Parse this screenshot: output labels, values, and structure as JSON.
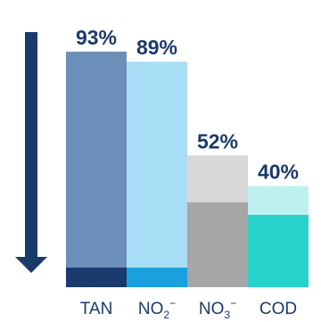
{
  "chart_data": {
    "type": "bar",
    "categories": [
      "TAN",
      "NO2-",
      "NO3-",
      "COD"
    ],
    "category_labels": [
      {
        "base": "TAN",
        "sub": "",
        "sup": ""
      },
      {
        "base": "NO",
        "sub": "2",
        "sup": "−"
      },
      {
        "base": "NO",
        "sub": "3",
        "sup": "−"
      },
      {
        "base": "COD",
        "sub": "",
        "sup": ""
      }
    ],
    "series": [
      {
        "values": [
          93,
          89,
          52,
          40
        ]
      }
    ],
    "data_labels": [
      "93%",
      "89%",
      "52%",
      "40%"
    ],
    "remaining_fraction": [
      0.07,
      0.11,
      0.48,
      0.6
    ],
    "direction_arrow": "down",
    "colors": {
      "removed": [
        "#6b8fb8",
        "#a8def5",
        "#d8d8d8",
        "#bff0f0"
      ],
      "remaining": [
        "#1a3a6b",
        "#1aa0dd",
        "#a6a6a6",
        "#2ad2cc"
      ],
      "arrow": "#1a3a6b",
      "text": "#1a3a6b"
    },
    "grid": false,
    "legend": "none"
  }
}
